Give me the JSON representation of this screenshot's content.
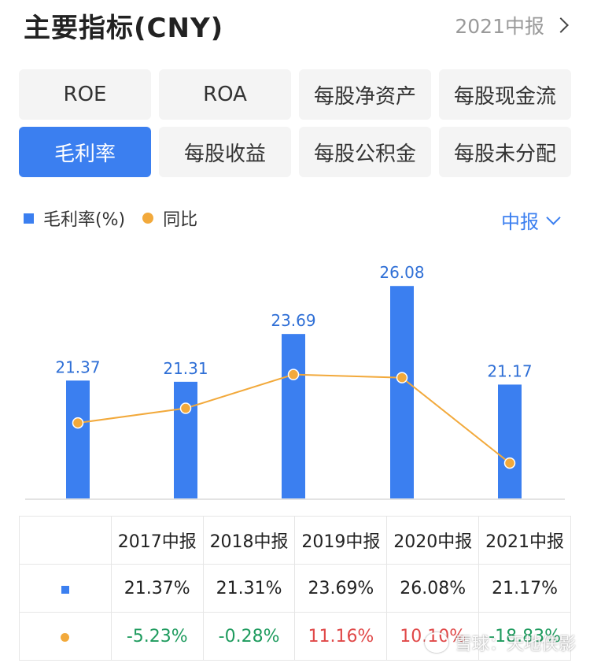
{
  "header": {
    "title": "主要指标(CNY)",
    "period_link": "2021中报"
  },
  "metrics": [
    {
      "label": "ROE",
      "active": false
    },
    {
      "label": "ROA",
      "active": false
    },
    {
      "label": "每股净资产",
      "active": false
    },
    {
      "label": "每股现金流",
      "active": false
    },
    {
      "label": "毛利率",
      "active": true
    },
    {
      "label": "每股收益",
      "active": false
    },
    {
      "label": "每股公积金",
      "active": false
    },
    {
      "label": "每股未分配",
      "active": false
    }
  ],
  "legend": {
    "bar_label": "毛利率(%)",
    "line_label": "同比"
  },
  "period_select": "中报",
  "colors": {
    "accent": "#3b7ff0",
    "line": "#f2a93b",
    "negative": "#1e9b5e",
    "positive": "#e04848"
  },
  "chart_data": {
    "type": "bar",
    "categories": [
      "2017中报",
      "2018中报",
      "2019中报",
      "2020中报",
      "2021中报"
    ],
    "series": [
      {
        "name": "毛利率(%)",
        "type": "bar",
        "values": [
          21.37,
          21.31,
          23.69,
          26.08,
          21.17
        ],
        "labels": [
          "21.37",
          "21.31",
          "23.69",
          "26.08",
          "21.17"
        ]
      },
      {
        "name": "同比",
        "type": "line",
        "values": [
          -5.23,
          -0.28,
          11.16,
          10.1,
          -18.83
        ]
      }
    ]
  },
  "table": {
    "headers": [
      "2017中报",
      "2018中报",
      "2019中报",
      "2020中报",
      "2021中报"
    ],
    "rows": [
      {
        "marker": "bar",
        "values": [
          "21.37%",
          "21.31%",
          "23.69%",
          "26.08%",
          "21.17%"
        ]
      },
      {
        "marker": "line",
        "values": [
          "-5.23%",
          "-0.28%",
          "11.16%",
          "10.10%",
          "-18.83%"
        ]
      }
    ]
  },
  "watermark": "雪球：天地侠影"
}
